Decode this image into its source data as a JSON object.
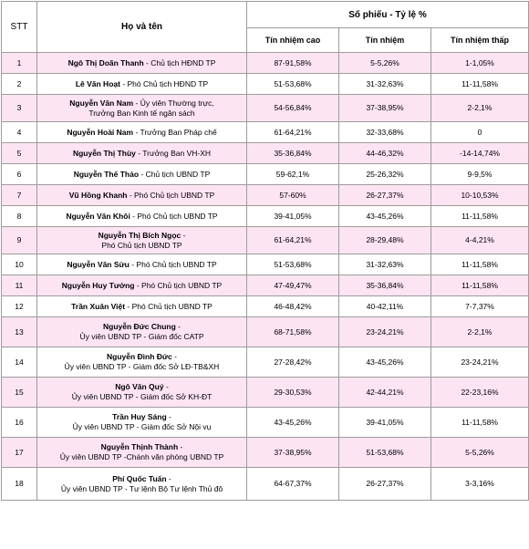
{
  "header": {
    "stt": "STT",
    "name": "Họ và tên",
    "group": "Số phiếu - Tỷ lệ %",
    "col_high": "Tín nhiệm cao",
    "col_mid": "Tín nhiệm",
    "col_low": "Tín nhiệm thấp"
  },
  "rows": [
    {
      "stt": "1",
      "name": "Ngô Thị Doãn Thanh",
      "role": " - Chủ tịch HĐND TP",
      "role2": "",
      "high": "87-91,58%",
      "mid": "5-5,26%",
      "low": "1-1,05%"
    },
    {
      "stt": "2",
      "name": "Lê Văn Hoạt",
      "role": " -  Phó Chủ tịch HĐND TP",
      "role2": "",
      "high": "51-53,68%",
      "mid": "31-32,63%",
      "low": "11-11,58%"
    },
    {
      "stt": "3",
      "name": "Nguyễn Văn Nam",
      "role": " - Ủy viên Thường trực,",
      "role2": "Trưởng Ban Kinh tế ngân sách",
      "high": "54-56,84%",
      "mid": "37-38,95%",
      "low": "2-2,1%"
    },
    {
      "stt": "4",
      "name": "Nguyễn Hoài Nam",
      "role": " - Trưởng Ban Pháp chế",
      "role2": "",
      "high": "61-64,21%",
      "mid": "32-33,68%",
      "low": "0"
    },
    {
      "stt": "5",
      "name": "Nguyễn Thị Thùy",
      "role": " - Trưởng Ban VH-XH",
      "role2": "",
      "high": "35-36,84%",
      "mid": "44-46,32%",
      "low": "-14-14,74%"
    },
    {
      "stt": "6",
      "name": "Nguyễn Thế Thảo",
      "role": " - Chủ tịch UBND TP",
      "role2": "",
      "high": "59-62,1%",
      "mid": "25-26,32%",
      "low": "9-9,5%"
    },
    {
      "stt": "7",
      "name": "Vũ Hồng Khanh",
      "role": " - Phó Chủ tịch UBND TP",
      "role2": "",
      "high": "57-60%",
      "mid": "26-27,37%",
      "low": "10-10,53%"
    },
    {
      "stt": "8",
      "name": "Nguyễn Văn Khôi",
      "role": " - Phó Chủ tịch UBND TP",
      "role2": "",
      "high": "39-41,05%",
      "mid": "43-45,26%",
      "low": "11-11,58%"
    },
    {
      "stt": "9",
      "name": "Nguyễn Thị Bích Ngọc",
      "role": " -",
      "role2": "Phó Chủ tịch UBND TP",
      "high": "61-64,21%",
      "mid": "28-29,48%",
      "low": "4-4,21%"
    },
    {
      "stt": "10",
      "name": "Nguyễn Văn Sửu",
      "role": " - Phó Chủ tịch UBND TP",
      "role2": "",
      "high": "51-53,68%",
      "mid": "31-32,63%",
      "low": "11-11,58%"
    },
    {
      "stt": "11",
      "name": "Nguyễn Huy Tưởng",
      "role": " - Phó Chủ tịch UBND TP",
      "role2": "",
      "high": "47-49,47%",
      "mid": "35-36,84%",
      "low": "11-11,58%"
    },
    {
      "stt": "12",
      "name": "Trần Xuân Việt",
      "role": " - Phó Chủ tịch UBND TP",
      "role2": "",
      "high": "46-48,42%",
      "mid": "40-42,11%",
      "low": "7-7,37%"
    },
    {
      "stt": "13",
      "name": "Nguyễn Đức Chung",
      "role": " -",
      "role2": "Ủy viên UBND TP  - Giám đốc CATP",
      "high": "68-71,58%",
      "mid": "23-24,21%",
      "low": "2-2,1%"
    },
    {
      "stt": "14",
      "name": "Nguyễn Đình Đức",
      "role": " -",
      "role2": "Ủy viên UBND TP - Giám đốc Sở LĐ-TB&XH",
      "high": "27-28,42%",
      "mid": "43-45,26%",
      "low": "23-24,21%"
    },
    {
      "stt": "15",
      "name": "Ngô Văn Quý",
      "role": " -",
      "role2": "Ủy viên UBND TP - Giám đốc Sở KH-ĐT",
      "high": "29-30,53%",
      "mid": "42-44,21%",
      "low": "22-23,16%"
    },
    {
      "stt": "16",
      "name": "Trần Huy Sáng",
      "role": " -",
      "role2": "Ủy viên UBND TP - Giám đốc Sở Nội vụ",
      "high": "43-45,26%",
      "mid": "39-41,05%",
      "low": "11-11,58%"
    },
    {
      "stt": "17",
      "name": "Nguyễn Thịnh Thành",
      "role": " -",
      "role2": "Ủy viên UBND TP -Chánh văn phòng UBND TP",
      "high": "37-38,95%",
      "mid": "51-53,68%",
      "low": "5-5,26%"
    },
    {
      "stt": "18",
      "name": "Phí Quốc Tuấn",
      "role": " -",
      "role2": "Ủy viên UBND TP - Tư lệnh Bộ Tư lệnh Thủ đô",
      "high": "64-67,37%",
      "mid": "26-27,37%",
      "low": "3-3,16%"
    }
  ]
}
